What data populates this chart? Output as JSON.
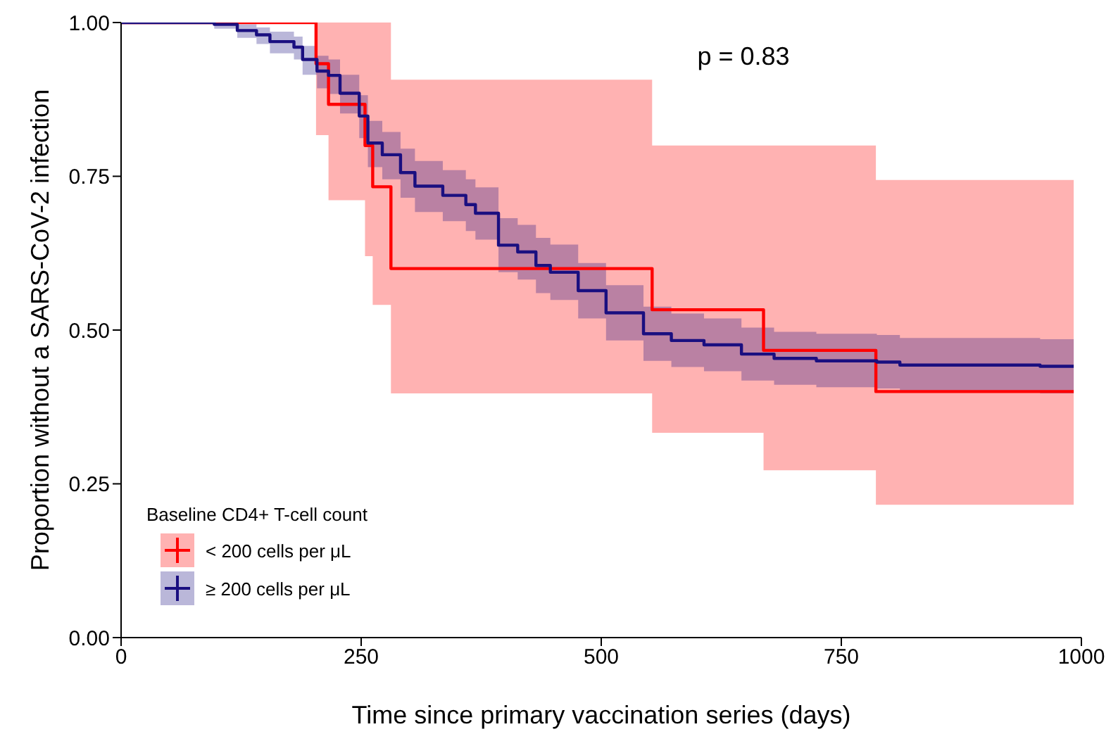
{
  "chart_data": {
    "type": "step",
    "xlabel": "Time since primary vaccination series (days)",
    "ylabel": "Proportion without a SARS-CoV-2 infection",
    "legend_title": "Baseline CD4+ T-cell count",
    "annotations": [
      "p = 0.83"
    ],
    "xlim": [
      0,
      1000
    ],
    "xticks": [
      0,
      250,
      500,
      750,
      1000
    ],
    "ylim": [
      0,
      1
    ],
    "yticks": [
      {
        "value": 0,
        "label": "0.00"
      },
      {
        "value": 0.25,
        "label": "0.25"
      },
      {
        "value": 0.5,
        "label": "0.50"
      },
      {
        "value": 0.75,
        "label": "0.75"
      },
      {
        "value": 1,
        "label": "1.00"
      }
    ],
    "grid": false,
    "legend": "bottom left",
    "line_style": "solid",
    "series": [
      {
        "name": "< 200 cells per μL",
        "color": "#ff0000",
        "x": [
          0,
          203,
          216,
          254,
          262,
          281,
          553,
          669,
          786,
          992
        ],
        "values": [
          1,
          0.933,
          0.867,
          0.8,
          0.733,
          0.6,
          0.533,
          0.467,
          0.4,
          0.4
        ],
        "lower": [
          1,
          0.817,
          0.711,
          0.62,
          0.541,
          0.397,
          0.333,
          0.272,
          0.216,
          0.216
        ],
        "upper": [
          1,
          1,
          1,
          1,
          1,
          0.907,
          0.8,
          0.8,
          0.744,
          0.744
        ]
      },
      {
        "name": "≥ 200 cells per μL",
        "color": "#1a0f80",
        "x": [
          0,
          97,
          121,
          141,
          155,
          180,
          189,
          204,
          216,
          228,
          248,
          257,
          272,
          291,
          306,
          335,
          359,
          369,
          393,
          413,
          432,
          447,
          476,
          505,
          544,
          573,
          607,
          646,
          680,
          724,
          787,
          811,
          957,
          992
        ],
        "values": [
          1,
          0.997,
          0.987,
          0.98,
          0.969,
          0.96,
          0.94,
          0.921,
          0.914,
          0.885,
          0.848,
          0.804,
          0.785,
          0.756,
          0.734,
          0.719,
          0.704,
          0.69,
          0.638,
          0.627,
          0.605,
          0.594,
          0.564,
          0.528,
          0.494,
          0.483,
          0.476,
          0.461,
          0.454,
          0.45,
          0.448,
          0.443,
          0.441,
          0.441
        ],
        "lower": [
          1,
          0.99,
          0.975,
          0.965,
          0.95,
          0.94,
          0.915,
          0.893,
          0.884,
          0.852,
          0.812,
          0.765,
          0.745,
          0.715,
          0.692,
          0.677,
          0.661,
          0.647,
          0.594,
          0.582,
          0.56,
          0.549,
          0.519,
          0.483,
          0.45,
          0.44,
          0.433,
          0.418,
          0.411,
          0.407,
          0.405,
          0.4,
          0.397,
          0.397
        ],
        "upper": [
          1,
          1,
          0.997,
          0.992,
          0.985,
          0.977,
          0.962,
          0.946,
          0.94,
          0.915,
          0.882,
          0.84,
          0.822,
          0.795,
          0.775,
          0.76,
          0.745,
          0.732,
          0.682,
          0.671,
          0.65,
          0.639,
          0.609,
          0.573,
          0.538,
          0.527,
          0.519,
          0.504,
          0.497,
          0.494,
          0.492,
          0.487,
          0.485,
          0.485
        ]
      }
    ]
  }
}
